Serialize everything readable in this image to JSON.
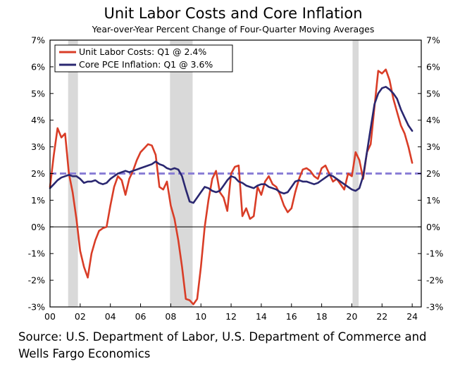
{
  "chart_data": {
    "type": "line",
    "title": "Unit Labor Costs and Core Inflation",
    "subtitle": "Year-over-Year Percent Change of Four-Quarter Moving Averages",
    "xlim": [
      2000,
      2024.6
    ],
    "ylim": [
      -3,
      7
    ],
    "y_ticks": [
      7,
      6,
      5,
      4,
      3,
      2,
      1,
      0,
      -1,
      -2,
      -3
    ],
    "y_tick_labels": [
      "7%",
      "6%",
      "5%",
      "4%",
      "3%",
      "2%",
      "1%",
      "0%",
      "-1%",
      "-2%",
      "-3%"
    ],
    "x_ticks": [
      2000,
      2002,
      2004,
      2006,
      2008,
      2010,
      2012,
      2014,
      2016,
      2018,
      2020,
      2022,
      2024
    ],
    "x_tick_labels": [
      "00",
      "02",
      "04",
      "06",
      "08",
      "10",
      "12",
      "14",
      "16",
      "18",
      "20",
      "22",
      "24"
    ],
    "recessions": [
      [
        2001.2,
        2001.85
      ],
      [
        2007.95,
        2009.45
      ],
      [
        2020.05,
        2020.45
      ]
    ],
    "reference_line": {
      "y": 2,
      "color": "#8b7fd6"
    },
    "legend_position": "top-left",
    "series": [
      {
        "name": "Unit Labor Costs: Q1 @ 2.4%",
        "color": "#d93d27",
        "x": [
          2000.0,
          2000.25,
          2000.5,
          2000.75,
          2001.0,
          2001.25,
          2001.5,
          2001.75,
          2002.0,
          2002.25,
          2002.5,
          2002.75,
          2003.0,
          2003.25,
          2003.5,
          2003.75,
          2004.0,
          2004.25,
          2004.5,
          2004.75,
          2005.0,
          2005.25,
          2005.5,
          2005.75,
          2006.0,
          2006.25,
          2006.5,
          2006.75,
          2007.0,
          2007.25,
          2007.5,
          2007.75,
          2008.0,
          2008.25,
          2008.5,
          2008.75,
          2009.0,
          2009.25,
          2009.5,
          2009.75,
          2010.0,
          2010.25,
          2010.5,
          2010.75,
          2011.0,
          2011.25,
          2011.5,
          2011.75,
          2012.0,
          2012.25,
          2012.5,
          2012.75,
          2013.0,
          2013.25,
          2013.5,
          2013.75,
          2014.0,
          2014.25,
          2014.5,
          2014.75,
          2015.0,
          2015.25,
          2015.5,
          2015.75,
          2016.0,
          2016.25,
          2016.5,
          2016.75,
          2017.0,
          2017.25,
          2017.5,
          2017.75,
          2018.0,
          2018.25,
          2018.5,
          2018.75,
          2019.0,
          2019.25,
          2019.5,
          2019.75,
          2020.0,
          2020.25,
          2020.5,
          2020.75,
          2021.0,
          2021.25,
          2021.5,
          2021.75,
          2022.0,
          2022.25,
          2022.5,
          2022.75,
          2023.0,
          2023.25,
          2023.5,
          2023.75,
          2024.0
        ],
        "values": [
          1.5,
          2.7,
          3.7,
          3.35,
          3.5,
          2.0,
          1.3,
          0.3,
          -0.9,
          -1.5,
          -1.9,
          -1.0,
          -0.5,
          -0.15,
          -0.05,
          0.0,
          0.8,
          1.5,
          1.9,
          1.75,
          1.2,
          1.8,
          2.1,
          2.5,
          2.8,
          2.95,
          3.1,
          3.05,
          2.7,
          1.5,
          1.4,
          1.7,
          0.8,
          0.3,
          -0.5,
          -1.5,
          -2.7,
          -2.75,
          -2.9,
          -2.7,
          -1.5,
          0.0,
          1.0,
          1.8,
          2.1,
          1.3,
          1.1,
          0.6,
          2.0,
          2.25,
          2.3,
          0.4,
          0.7,
          0.3,
          0.4,
          1.5,
          1.2,
          1.7,
          1.9,
          1.6,
          1.5,
          1.2,
          0.8,
          0.55,
          0.7,
          1.3,
          1.8,
          2.15,
          2.2,
          2.1,
          1.9,
          1.8,
          2.2,
          2.3,
          2.0,
          1.7,
          1.8,
          1.6,
          1.4,
          2.0,
          1.9,
          2.8,
          2.5,
          1.8,
          2.8,
          3.1,
          4.5,
          5.85,
          5.75,
          5.9,
          5.5,
          4.8,
          4.3,
          3.8,
          3.5,
          3.0,
          2.4
        ]
      },
      {
        "name": "Core PCE Inflation: Q1 @ 3.6%",
        "color": "#2a2770",
        "x": [
          2000.0,
          2000.25,
          2000.5,
          2000.75,
          2001.0,
          2001.25,
          2001.5,
          2001.75,
          2002.0,
          2002.25,
          2002.5,
          2002.75,
          2003.0,
          2003.25,
          2003.5,
          2003.75,
          2004.0,
          2004.25,
          2004.5,
          2004.75,
          2005.0,
          2005.25,
          2005.5,
          2005.75,
          2006.0,
          2006.25,
          2006.5,
          2006.75,
          2007.0,
          2007.25,
          2007.5,
          2007.75,
          2008.0,
          2008.25,
          2008.5,
          2008.75,
          2009.0,
          2009.25,
          2009.5,
          2009.75,
          2010.0,
          2010.25,
          2010.5,
          2010.75,
          2011.0,
          2011.25,
          2011.5,
          2011.75,
          2012.0,
          2012.25,
          2012.5,
          2012.75,
          2013.0,
          2013.25,
          2013.5,
          2013.75,
          2014.0,
          2014.25,
          2014.5,
          2014.75,
          2015.0,
          2015.25,
          2015.5,
          2015.75,
          2016.0,
          2016.25,
          2016.5,
          2016.75,
          2017.0,
          2017.25,
          2017.5,
          2017.75,
          2018.0,
          2018.25,
          2018.5,
          2018.75,
          2019.0,
          2019.25,
          2019.5,
          2019.75,
          2020.0,
          2020.25,
          2020.5,
          2020.75,
          2021.0,
          2021.25,
          2021.5,
          2021.75,
          2022.0,
          2022.25,
          2022.5,
          2022.75,
          2023.0,
          2023.25,
          2023.5,
          2023.75,
          2024.0
        ],
        "values": [
          1.45,
          1.6,
          1.75,
          1.85,
          1.9,
          1.95,
          1.9,
          1.9,
          1.8,
          1.65,
          1.7,
          1.7,
          1.75,
          1.65,
          1.6,
          1.65,
          1.8,
          1.9,
          2.0,
          2.05,
          2.1,
          2.05,
          2.1,
          2.15,
          2.2,
          2.25,
          2.3,
          2.35,
          2.45,
          2.35,
          2.3,
          2.2,
          2.15,
          2.2,
          2.15,
          1.9,
          1.4,
          0.95,
          0.9,
          1.1,
          1.3,
          1.5,
          1.45,
          1.35,
          1.3,
          1.35,
          1.55,
          1.75,
          1.9,
          1.85,
          1.7,
          1.65,
          1.55,
          1.5,
          1.45,
          1.55,
          1.6,
          1.6,
          1.5,
          1.45,
          1.4,
          1.3,
          1.25,
          1.3,
          1.5,
          1.7,
          1.75,
          1.7,
          1.7,
          1.65,
          1.6,
          1.65,
          1.75,
          1.85,
          1.95,
          1.9,
          1.8,
          1.7,
          1.6,
          1.5,
          1.4,
          1.35,
          1.45,
          1.9,
          2.8,
          3.7,
          4.6,
          5.0,
          5.2,
          5.25,
          5.15,
          5.0,
          4.8,
          4.4,
          4.1,
          3.8,
          3.6
        ]
      }
    ]
  },
  "source": {
    "line1": "Source: U.S. Department of Labor, U.S. Department of Commerce and",
    "line2": "Wells Fargo Economics"
  }
}
